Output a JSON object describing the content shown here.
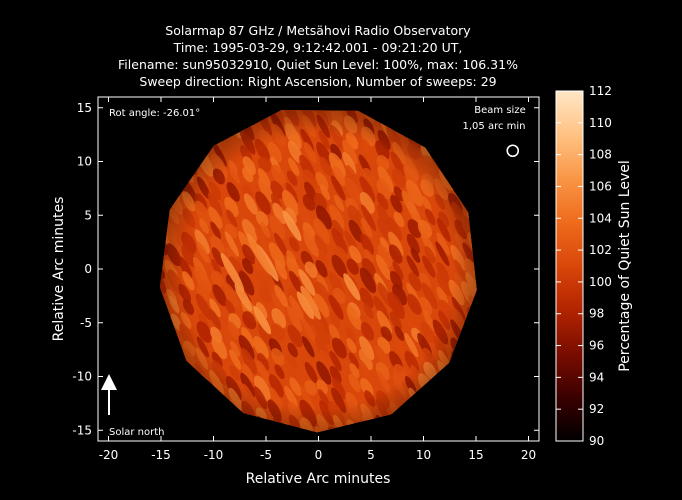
{
  "chart_data": {
    "type": "heatmap",
    "title_lines": [
      "Solarmap 87 GHz / Metsähovi Radio Observatory",
      "Time: 1995-03-29,  9:12:42.001 - 09:21:20 UT,",
      "Filename: sun95032910, Quiet Sun Level: 100%, max: 106.31%",
      "Sweep direction: Right Ascension, Number of sweeps: 29"
    ],
    "xlabel": "Relative Arc minutes",
    "ylabel": "Relative Arc minutes",
    "xlim": [
      -21,
      21
    ],
    "ylim": [
      -16,
      16
    ],
    "xticks": [
      -20,
      -15,
      -10,
      -5,
      0,
      5,
      10,
      15,
      20
    ],
    "yticks": [
      -15,
      -10,
      -5,
      0,
      5,
      10,
      15
    ],
    "disk_radius_arcmin": 15.2,
    "colorbar": {
      "label": "Percentage of Quiet Sun Level",
      "range": [
        90,
        112
      ],
      "ticks": [
        90,
        92,
        94,
        96,
        98,
        100,
        102,
        104,
        106,
        108,
        110,
        112
      ],
      "colormap": [
        "#000000",
        "#3a0000",
        "#7a0d00",
        "#b32400",
        "#d9470a",
        "#ee6b1c",
        "#f99646",
        "#ffc283",
        "#ffe6c6"
      ]
    },
    "annotations": {
      "rot_angle": "Rot angle: -26.01°",
      "beam_size_line1": "Beam size",
      "beam_size_line2": "1,05 arc min",
      "solar_north": "Solar north"
    },
    "beam_center": [
      18.5,
      11
    ]
  }
}
